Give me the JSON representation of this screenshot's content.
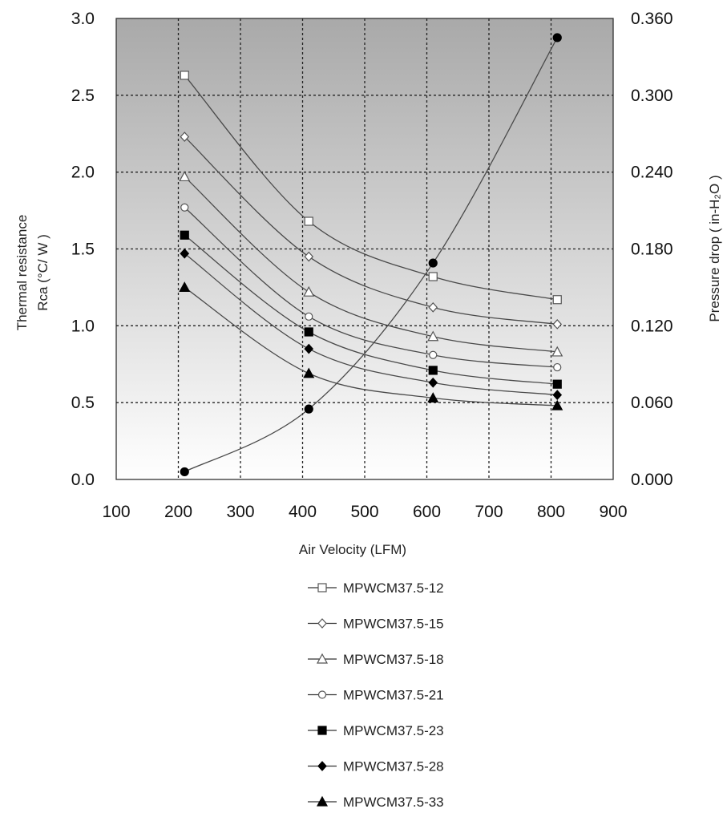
{
  "chart_data": {
    "type": "line",
    "xlabel": "Air Velocity (LFM)",
    "ylabel_line1": "Thermal resistance",
    "ylabel_line2": "Rca (°C/ W )",
    "y2label": "Pressure drop ( in-H₂O )",
    "xlim": [
      100,
      900
    ],
    "ylim": [
      0,
      3.0
    ],
    "y2lim": [
      0,
      0.36
    ],
    "x_ticks": [
      "100",
      "200",
      "300",
      "400",
      "500",
      "600",
      "700",
      "800",
      "900"
    ],
    "y_ticks": [
      "0.0",
      "0.5",
      "1.0",
      "1.5",
      "2.0",
      "2.5",
      "3.0"
    ],
    "y2_ticks": [
      "0.000",
      "0.060",
      "0.120",
      "0.180",
      "0.240",
      "0.300",
      "0.360"
    ],
    "grid": true,
    "legend_position": "bottom",
    "series": [
      {
        "name": "MPWCM37.5-12",
        "marker": "square-open",
        "axis": "left",
        "x": [
          210,
          410,
          610,
          810
        ],
        "y": [
          2.63,
          1.68,
          1.32,
          1.17
        ]
      },
      {
        "name": "MPWCM37.5-15",
        "marker": "diamond-open",
        "axis": "left",
        "x": [
          210,
          410,
          610,
          810
        ],
        "y": [
          2.23,
          1.45,
          1.12,
          1.01
        ]
      },
      {
        "name": "MPWCM37.5-18",
        "marker": "triangle-open",
        "axis": "left",
        "x": [
          210,
          410,
          610,
          810
        ],
        "y": [
          1.97,
          1.22,
          0.93,
          0.83
        ]
      },
      {
        "name": "MPWCM37.5-21",
        "marker": "circle-open",
        "axis": "left",
        "x": [
          210,
          410,
          610,
          810
        ],
        "y": [
          1.77,
          1.06,
          0.81,
          0.73
        ]
      },
      {
        "name": "MPWCM37.5-23",
        "marker": "square-filled",
        "axis": "left",
        "x": [
          210,
          410,
          610,
          810
        ],
        "y": [
          1.59,
          0.96,
          0.71,
          0.62
        ]
      },
      {
        "name": "MPWCM37.5-28",
        "marker": "diamond-filled",
        "axis": "left",
        "x": [
          210,
          410,
          610,
          810
        ],
        "y": [
          1.47,
          0.85,
          0.63,
          0.55
        ]
      },
      {
        "name": "MPWCM37.5-33",
        "marker": "triangle-filled",
        "axis": "left",
        "x": [
          210,
          410,
          610,
          810
        ],
        "y": [
          1.25,
          0.69,
          0.53,
          0.48
        ]
      },
      {
        "name": "",
        "marker": "circle-filled",
        "axis": "right",
        "x": [
          210,
          410,
          610,
          810
        ],
        "y": [
          0.006,
          0.055,
          0.169,
          0.345
        ]
      }
    ]
  }
}
